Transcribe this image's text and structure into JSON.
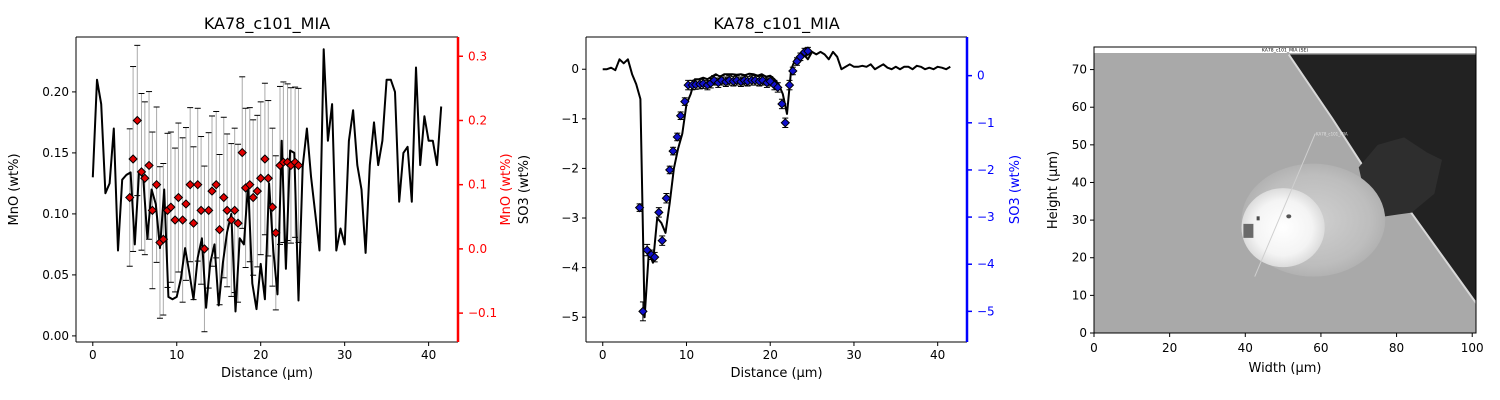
{
  "chart_data": [
    {
      "type": "line",
      "title": "KA78_c101_MIA",
      "xlabel": "Distance (µm)",
      "ylabel_left": "MnO (wt%)",
      "ylabel_right": "MnO (wt%)",
      "xlim": [
        -2,
        43.5
      ],
      "ylim_left": [
        -0.005,
        0.245
      ],
      "ylim_right": [
        -0.145,
        0.33
      ],
      "x_ticks": [
        0,
        10,
        20,
        30,
        40
      ],
      "y_ticks_left": [
        0.0,
        0.05,
        0.1,
        0.15,
        0.2
      ],
      "y_ticks_right": [
        -0.1,
        0.0,
        0.1,
        0.2,
        0.3
      ],
      "colors": {
        "line": "#000000",
        "marker": "#e00000",
        "right_axis": "#ff0000",
        "errorbar": "#aaaaaa"
      },
      "line_series": {
        "x": [
          0,
          0.5,
          1,
          1.5,
          2,
          2.5,
          3,
          3.5,
          4,
          4.5,
          5,
          5.5,
          6,
          6.5,
          7,
          7.5,
          8,
          8.5,
          9,
          9.5,
          10,
          10.5,
          11,
          11.5,
          12,
          12.5,
          13,
          13.5,
          14,
          14.5,
          15,
          15.5,
          16,
          16.5,
          17,
          17.5,
          18,
          18.5,
          19,
          19.5,
          20,
          20.5,
          21,
          21.5,
          22,
          22.5,
          23,
          23.5,
          24,
          24.5,
          25,
          25.5,
          26,
          26.5,
          27,
          27.5,
          28,
          28.5,
          29,
          29.5,
          30,
          30.5,
          31,
          31.5,
          32,
          32.5,
          33,
          33.5,
          34,
          34.5,
          35,
          35.5,
          36,
          36.5,
          37,
          37.5,
          38,
          38.5,
          39,
          39.5,
          40,
          40.5,
          41,
          41.5
        ],
        "y": [
          0.13,
          0.21,
          0.19,
          0.117,
          0.125,
          0.17,
          0.07,
          0.128,
          0.132,
          0.134,
          0.075,
          0.134,
          0.13,
          0.08,
          0.12,
          0.108,
          0.072,
          0.12,
          0.032,
          0.03,
          0.032,
          0.047,
          0.072,
          0.052,
          0.03,
          0.064,
          0.08,
          0.023,
          0.06,
          0.075,
          0.025,
          0.06,
          0.085,
          0.1,
          0.02,
          0.08,
          0.075,
          0.125,
          0.043,
          0.022,
          0.059,
          0.03,
          0.125,
          0.07,
          0.034,
          0.16,
          0.055,
          0.152,
          0.15,
          0.029,
          0.139,
          0.17,
          0.13,
          0.1,
          0.07,
          0.235,
          0.16,
          0.19,
          0.07,
          0.088,
          0.075,
          0.16,
          0.185,
          0.14,
          0.12,
          0.068,
          0.14,
          0.175,
          0.14,
          0.16,
          0.21,
          0.21,
          0.2,
          0.11,
          0.15,
          0.155,
          0.11,
          0.22,
          0.14,
          0.18,
          0.16,
          0.16,
          0.14,
          0.188
        ]
      },
      "marker_series": {
        "x": [
          4.4,
          4.8,
          5.3,
          5.8,
          6.2,
          6.7,
          7.1,
          7.6,
          8.0,
          8.4,
          8.9,
          9.3,
          9.8,
          10.2,
          10.7,
          11.1,
          11.6,
          12.0,
          12.5,
          12.9,
          13.3,
          13.8,
          14.2,
          14.7,
          15.1,
          15.6,
          16.0,
          16.5,
          16.9,
          17.3,
          17.8,
          18.2,
          18.7,
          19.1,
          19.6,
          20.0,
          20.5,
          20.9,
          21.4,
          21.8,
          22.3,
          22.7,
          23.2,
          23.6,
          24.1,
          24.5
        ],
        "y": [
          0.08,
          0.14,
          0.2,
          0.12,
          0.11,
          0.13,
          0.06,
          0.1,
          0.01,
          0.015,
          0.06,
          0.065,
          0.045,
          0.08,
          0.045,
          0.07,
          0.1,
          0.04,
          0.1,
          0.06,
          0.0,
          0.06,
          0.09,
          0.1,
          0.03,
          0.08,
          0.06,
          0.045,
          0.06,
          0.04,
          0.15,
          0.095,
          0.1,
          0.08,
          0.09,
          0.11,
          0.14,
          0.11,
          0.065,
          0.025,
          0.13,
          0.135,
          0.135,
          0.13,
          0.135,
          0.13
        ],
        "err": [
          0.107,
          0.144,
          0.117,
          0.122,
          0.119,
          0.115,
          0.122,
          0.121,
          0.118,
          0.118,
          0.12,
          0.117,
          0.112,
          0.116,
          0.128,
          0.119,
          0.12,
          0.119,
          0.119,
          0.115,
          0.129,
          0.121,
          0.117,
          0.114,
          0.117,
          0.125,
          0.119,
          0.119,
          0.128,
          0.123,
          0.118,
          0.124,
          0.12,
          0.121,
          0.118,
          0.119,
          0.118,
          0.121,
          0.123,
          0.12,
          0.123,
          0.125,
          0.122,
          0.121,
          0.117,
          0.12
        ]
      }
    },
    {
      "type": "line",
      "title": "KA78_c101_MIA",
      "xlabel": "Distance (µm)",
      "ylabel_left": "SO3 (wt%)",
      "ylabel_right": "SO3 (wt%)",
      "xlim": [
        -2,
        43.5
      ],
      "ylim_left": [
        -5.5,
        0.65
      ],
      "ylim_right": [
        -5.65,
        0.82
      ],
      "x_ticks": [
        0,
        10,
        20,
        30,
        40
      ],
      "y_ticks_left": [
        -5,
        -4,
        -3,
        -2,
        -1,
        0
      ],
      "y_ticks_right": [
        -5,
        -4,
        -3,
        -2,
        -1,
        0
      ],
      "colors": {
        "line": "#000000",
        "marker": "#1010cc",
        "right_axis": "#0000ff",
        "errorbar": "#000000"
      },
      "line_series": {
        "x": [
          0,
          0.5,
          1,
          1.5,
          2,
          2.5,
          3,
          3.5,
          4,
          4.5,
          5,
          5.5,
          6,
          6.5,
          7,
          7.5,
          8,
          8.5,
          9,
          9.5,
          10,
          10.5,
          11,
          11.5,
          12,
          12.5,
          13,
          13.5,
          14,
          14.5,
          15,
          15.5,
          16,
          16.5,
          17,
          17.5,
          18,
          18.5,
          19,
          19.5,
          20,
          20.5,
          21,
          21.5,
          22,
          22.5,
          23,
          23.5,
          24,
          24.5,
          25,
          25.5,
          26,
          26.5,
          27,
          27.5,
          28,
          28.5,
          29,
          29.5,
          30,
          30.5,
          31,
          31.5,
          32,
          32.5,
          33,
          33.5,
          34,
          34.5,
          35,
          35.5,
          36,
          36.5,
          37,
          37.5,
          38,
          38.5,
          39,
          39.5,
          40,
          40.5,
          41,
          41.5
        ],
        "y": [
          0.0,
          0.0,
          0.03,
          -0.02,
          0.2,
          0.12,
          0.2,
          -0.1,
          -0.3,
          -0.6,
          -5.0,
          -3.7,
          -3.9,
          -3.0,
          -3.1,
          -3.3,
          -2.7,
          -2.0,
          -1.6,
          -1.3,
          -0.7,
          -0.5,
          -0.2,
          -0.2,
          -0.17,
          -0.2,
          -0.15,
          -0.1,
          -0.15,
          -0.1,
          -0.1,
          -0.1,
          -0.11,
          -0.1,
          -0.12,
          -0.09,
          -0.1,
          -0.13,
          -0.1,
          -0.15,
          -0.13,
          -0.2,
          -0.3,
          -0.5,
          -0.9,
          0.0,
          0.2,
          0.25,
          0.3,
          0.2,
          0.35,
          0.3,
          0.35,
          0.3,
          0.2,
          0.35,
          0.25,
          0.0,
          0.05,
          0.1,
          0.05,
          0.05,
          0.07,
          0.05,
          0.1,
          0.0,
          0.05,
          0.1,
          0.03,
          0.0,
          0.05,
          0.0,
          0.05,
          0.05,
          0.0,
          0.07,
          0.05,
          0.0,
          0.03,
          0.0,
          0.05,
          0.03,
          0.0,
          0.05
        ]
      },
      "marker_series": {
        "x": [
          4.4,
          4.8,
          5.3,
          5.8,
          6.2,
          6.7,
          7.1,
          7.6,
          8.0,
          8.4,
          8.9,
          9.3,
          9.8,
          10.2,
          10.7,
          11.1,
          11.6,
          12.0,
          12.5,
          12.9,
          13.3,
          13.8,
          14.2,
          14.7,
          15.1,
          15.6,
          16.0,
          16.5,
          16.9,
          17.3,
          17.8,
          18.2,
          18.7,
          19.1,
          19.6,
          20.0,
          20.5,
          20.9,
          21.4,
          21.8,
          22.3,
          22.7,
          23.2,
          23.6,
          24.1,
          24.5
        ],
        "y": [
          -2.8,
          -5.0,
          -3.7,
          -3.8,
          -3.85,
          -2.9,
          -3.5,
          -2.6,
          -2.0,
          -1.6,
          -1.3,
          -0.85,
          -0.55,
          -0.2,
          -0.2,
          -0.19,
          -0.18,
          -0.17,
          -0.2,
          -0.16,
          -0.1,
          -0.15,
          -0.1,
          -0.13,
          -0.1,
          -0.12,
          -0.1,
          -0.13,
          -0.1,
          -0.12,
          -0.1,
          -0.1,
          -0.12,
          -0.1,
          -0.15,
          -0.12,
          -0.2,
          -0.25,
          -0.6,
          -1.0,
          -0.2,
          0.1,
          0.3,
          0.4,
          0.5,
          0.52
        ],
        "err": [
          0.08,
          0.2,
          0.12,
          0.1,
          0.1,
          0.1,
          0.1,
          0.1,
          0.08,
          0.08,
          0.08,
          0.08,
          0.08,
          0.1,
          0.1,
          0.1,
          0.1,
          0.1,
          0.1,
          0.1,
          0.1,
          0.1,
          0.1,
          0.1,
          0.1,
          0.1,
          0.1,
          0.1,
          0.1,
          0.1,
          0.1,
          0.1,
          0.1,
          0.1,
          0.1,
          0.1,
          0.1,
          0.1,
          0.1,
          0.1,
          0.1,
          0.08,
          0.08,
          0.08,
          0.08,
          0.08
        ]
      }
    },
    {
      "type": "image",
      "title": "",
      "image_caption": "KA78_c101_MIA (SE)",
      "image_label": "KA78_c101_MIA",
      "xlabel": "Width (µm)",
      "ylabel": "Height (µm)",
      "xlim": [
        0,
        101
      ],
      "ylim": [
        0,
        76
      ],
      "x_ticks": [
        0,
        20,
        40,
        60,
        80,
        100
      ],
      "y_ticks": [
        0,
        10,
        20,
        30,
        40,
        50,
        60,
        70
      ],
      "colors": {
        "background": "#a9a9a9",
        "dark_region": "#222222",
        "bright_region": "#f2f2f2",
        "caption_bar": "#ffffff"
      }
    }
  ]
}
